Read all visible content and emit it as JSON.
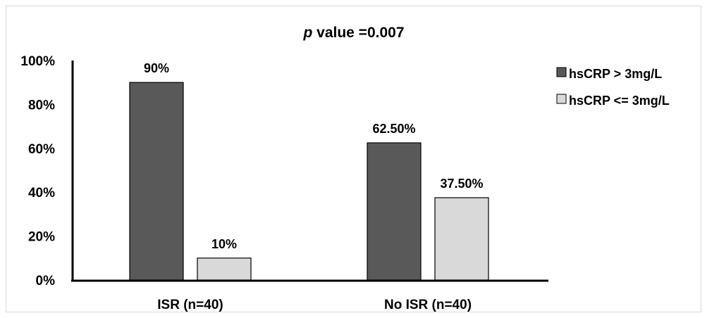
{
  "chart_data": {
    "type": "bar",
    "title_italic": "p",
    "title_rest": " value =0.007",
    "xlabel": "",
    "ylabel": "",
    "categories": [
      "ISR (n=40)",
      "No ISR (n=40)"
    ],
    "series": [
      {
        "name": "hsCRP > 3mg/L",
        "values": [
          90,
          62.5
        ],
        "labels": [
          "90%",
          "62.50%"
        ],
        "color": "#595959"
      },
      {
        "name": "hsCRP <= 3mg/L",
        "values": [
          10,
          37.5
        ],
        "labels": [
          "10%",
          "37.50%"
        ],
        "color": "#d9d9d9"
      }
    ],
    "ylim": [
      0,
      100
    ],
    "yticks": [
      0,
      20,
      40,
      60,
      80,
      100
    ],
    "ytick_labels": [
      "0%",
      "20%",
      "40%",
      "60%",
      "80%",
      "100%"
    ],
    "grid": false,
    "legend_position": "right"
  }
}
